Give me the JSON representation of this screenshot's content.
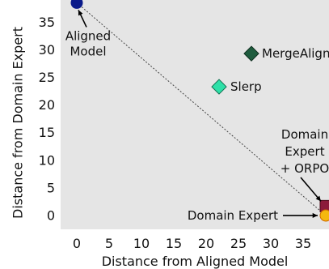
{
  "chart_data": {
    "type": "scatter",
    "xlabel": "Distance from Aligned Model",
    "ylabel": "Distance from Domain Expert",
    "xlim": [
      -2.5,
      39
    ],
    "ylim": [
      -2.5,
      39
    ],
    "xticks": [
      0,
      5,
      10,
      15,
      20,
      25,
      30,
      35
    ],
    "yticks": [
      0,
      5,
      10,
      15,
      20,
      25,
      30,
      35
    ],
    "grid": false,
    "background": "#e5e5e5",
    "points": [
      {
        "key": "aligned",
        "x": 0,
        "y": 38.5,
        "marker": "circle",
        "color": "#0a1a8a",
        "edge": "#0a1a8a"
      },
      {
        "key": "mergealign",
        "x": 27,
        "y": 29.3,
        "marker": "diamond",
        "color": "#1e5c3e",
        "edge": "#0f2f20"
      },
      {
        "key": "slerp",
        "x": 22,
        "y": 23.3,
        "marker": "diamond",
        "color": "#2ee0a8",
        "edge": "#0f6f4f"
      },
      {
        "key": "orpo",
        "x": 38.5,
        "y": 1.7,
        "marker": "square",
        "color": "#8b1a3a",
        "edge": "#4a0a1a"
      },
      {
        "key": "expert",
        "x": 38.5,
        "y": 0,
        "marker": "circle",
        "color": "#f5b80f",
        "edge": "#d06a00"
      }
    ],
    "reference_line": {
      "from": [
        0,
        38.5
      ],
      "to": [
        38.5,
        0
      ],
      "style": "dotted",
      "color": "#444444"
    },
    "annotations": {
      "aligned": [
        "Aligned",
        "Model"
      ],
      "mergealign": "MergeAlign",
      "slerp": "Slerp",
      "orpo": [
        "Domain",
        "Expert",
        "+ ORPO"
      ],
      "expert": "Domain Expert"
    }
  }
}
